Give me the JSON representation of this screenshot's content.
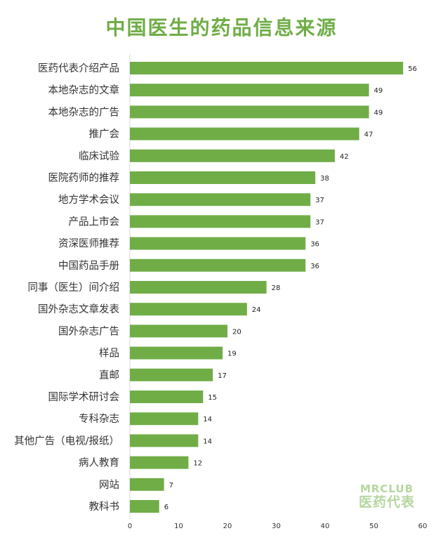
{
  "chart_data": {
    "type": "bar",
    "orientation": "horizontal",
    "title": "中国医生的药品信息来源",
    "categories": [
      "医药代表介绍产品",
      "本地杂志的文章",
      "本地杂志的广告",
      "推广会",
      "临床试验",
      "医院药师的推荐",
      "地方学术会议",
      "产品上市会",
      "资深医师推荐",
      "中国药品手册",
      "同事（医生）间介绍",
      "国外杂志文章发表",
      "国外杂志广告",
      "样品",
      "直邮",
      "国际学术研讨会",
      "专科杂志",
      "其他广告（电视/报纸）",
      "病人教育",
      "网站",
      "教科书"
    ],
    "values": [
      56,
      49,
      49,
      47,
      42,
      38,
      37,
      37,
      36,
      36,
      28,
      24,
      20,
      19,
      17,
      15,
      14,
      14,
      12,
      7,
      6
    ],
    "xlim": [
      0,
      60
    ],
    "xticks": [
      0,
      10,
      20,
      30,
      40,
      50,
      60
    ],
    "grid": false,
    "bar_color": "#70ad47",
    "title_color": "#70ad47",
    "data_labels": true
  },
  "watermark": {
    "line1": "MRCLUB",
    "line2": "医药代表"
  }
}
